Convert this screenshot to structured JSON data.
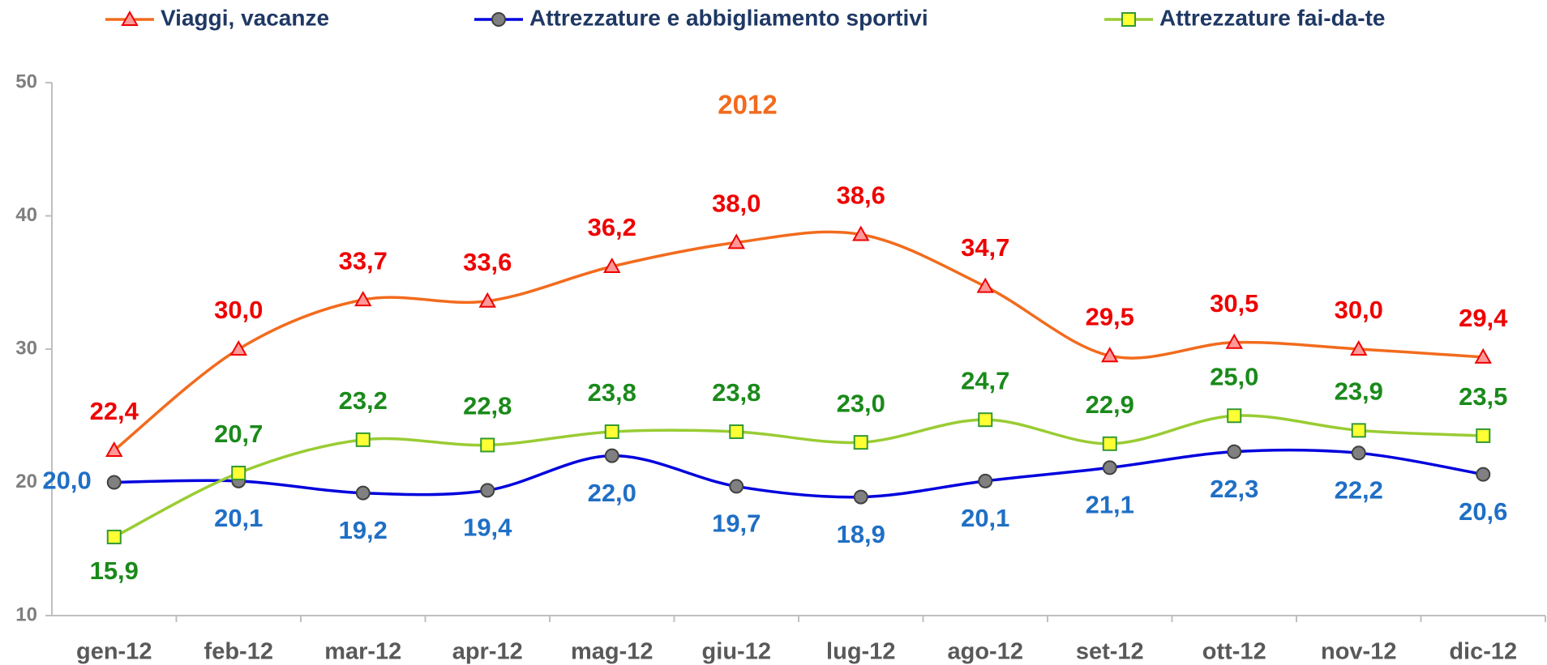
{
  "chart_data": {
    "type": "line",
    "annotation": "2012",
    "categories": [
      "gen-12",
      "feb-12",
      "mar-12",
      "apr-12",
      "mag-12",
      "giu-12",
      "lug-12",
      "ago-12",
      "set-12",
      "ott-12",
      "nov-12",
      "dic-12"
    ],
    "series": [
      {
        "name": "Viaggi, vacanze",
        "color": "#f26b1d",
        "marker": "triangle",
        "marker_color": "#ff9999",
        "label_color": "#ee0000",
        "values": [
          22.4,
          30.0,
          33.7,
          33.6,
          36.2,
          38.0,
          38.6,
          34.7,
          29.5,
          30.5,
          30.0,
          29.4
        ],
        "value_labels": [
          "22,4",
          "30,0",
          "33,7",
          "33,6",
          "36,2",
          "38,0",
          "38,6",
          "34,7",
          "29,5",
          "30,5",
          "30,0",
          "29,4"
        ]
      },
      {
        "name": "Attrezzature e abbigliamento sportivi",
        "color": "#0000dd",
        "marker": "circle",
        "marker_color": "#808080",
        "label_color": "#1f6fc5",
        "values": [
          20.0,
          20.1,
          19.2,
          19.4,
          22.0,
          19.7,
          18.9,
          20.1,
          21.1,
          22.3,
          22.2,
          20.6
        ],
        "value_labels": [
          "20,0",
          "20,1",
          "19,2",
          "19,4",
          "22,0",
          "19,7",
          "18,9",
          "20,1",
          "21,1",
          "22,3",
          "22,2",
          "20,6"
        ]
      },
      {
        "name": "Attrezzature fai-da-te",
        "color": "#99cc33",
        "marker": "square",
        "marker_color": "#ffff33",
        "label_color": "#1a8a1a",
        "values": [
          15.9,
          20.7,
          23.2,
          22.8,
          23.8,
          23.8,
          23.0,
          24.7,
          22.9,
          25.0,
          23.9,
          23.5
        ],
        "value_labels": [
          "15,9",
          "20,7",
          "23,2",
          "22,8",
          "23,8",
          "23,8",
          "23,0",
          "24,7",
          "22,9",
          "25,0",
          "23,9",
          "23,5"
        ]
      }
    ],
    "ylim": [
      10,
      50
    ],
    "yticks": [
      10,
      20,
      30,
      40,
      50
    ],
    "grid": false
  }
}
